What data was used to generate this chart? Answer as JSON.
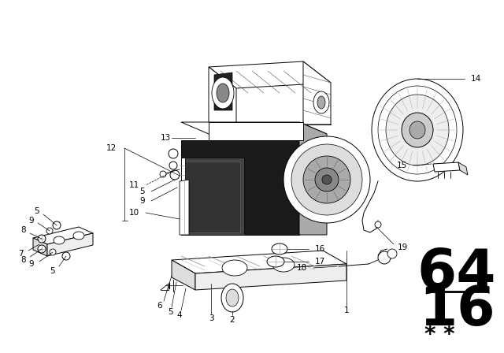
{
  "bg_color": "#ffffff",
  "line_color": "#000000",
  "fig_width": 6.4,
  "fig_height": 4.48,
  "dpi": 100,
  "label_fontsize": 7.5
}
